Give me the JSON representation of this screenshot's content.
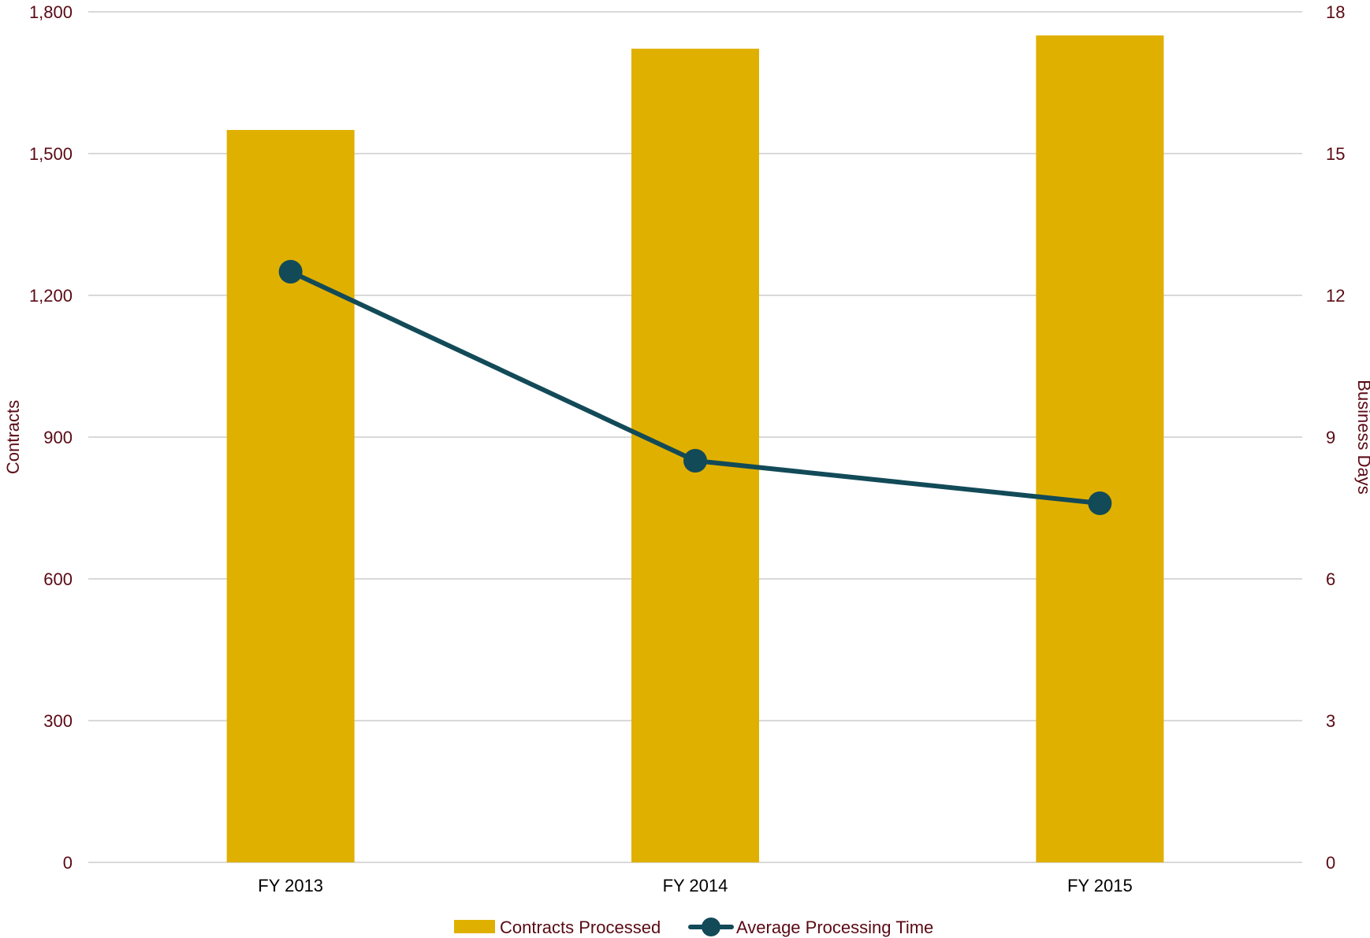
{
  "chart_data": {
    "type": "bar",
    "categories": [
      "FY 2013",
      "FY 2014",
      "FY 2015"
    ],
    "series": [
      {
        "name": "Contracts Processed",
        "type": "bar",
        "axis": "left",
        "color": "#E0B000",
        "values": [
          1550,
          1722,
          1750
        ]
      },
      {
        "name": "Average Processing Time",
        "type": "line",
        "axis": "right",
        "color": "#124A58",
        "values": [
          12.5,
          8.5,
          7.6
        ]
      }
    ],
    "ylabel_left": "Contracts",
    "ylabel_right": "Business Days",
    "ylim_left": [
      0,
      1800
    ],
    "ylim_right": [
      0,
      18
    ],
    "left_ticks": [
      "0",
      "300",
      "600",
      "900",
      "1,200",
      "1,500",
      "1,800"
    ],
    "right_ticks": [
      "0",
      "3",
      "6",
      "9",
      "12",
      "15",
      "18"
    ],
    "grid": true,
    "legend_position": "bottom"
  }
}
